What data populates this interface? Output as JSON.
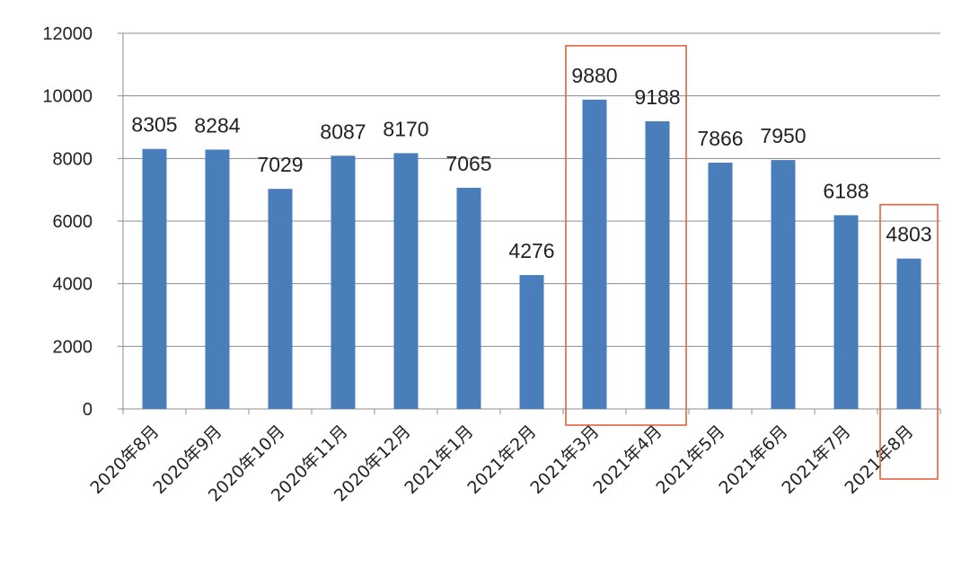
{
  "chart_data": {
    "type": "bar",
    "categories": [
      "2020年8月",
      "2020年9月",
      "2020年10月",
      "2020年11月",
      "2020年12月",
      "2021年1月",
      "2021年2月",
      "2021年3月",
      "2021年4月",
      "2021年5月",
      "2021年6月",
      "2021年7月",
      "2021年8月"
    ],
    "values": [
      8305,
      8284,
      7029,
      8087,
      8170,
      7065,
      4276,
      9880,
      9188,
      7866,
      7950,
      6188,
      4803
    ],
    "data_labels": [
      "8305",
      "8284",
      "7029",
      "8087",
      "8170",
      "7065",
      "4276",
      "9880",
      "9188",
      "7866",
      "7950",
      "6188",
      "4803"
    ],
    "title": "",
    "xlabel": "",
    "ylabel": "",
    "ylim": [
      0,
      12000
    ],
    "yticks": [
      0,
      2000,
      4000,
      6000,
      8000,
      10000,
      12000
    ],
    "ytick_labels": [
      "0",
      "2000",
      "4000",
      "6000",
      "8000",
      "10000",
      "12000"
    ],
    "grid": true,
    "legend": "none",
    "bar_color": "#4a7ebb",
    "highlight_color": "#e8603c",
    "highlights": [
      {
        "categories": [
          "2021年3月",
          "2021年4月"
        ]
      },
      {
        "categories": [
          "2021年8月"
        ]
      }
    ]
  }
}
